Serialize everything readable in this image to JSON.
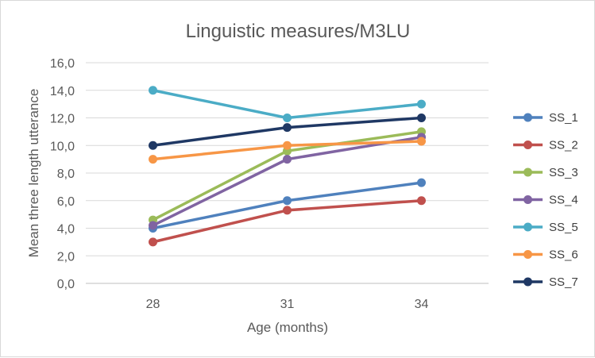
{
  "chart_data": {
    "type": "line",
    "title": "Linguistic measures/M3LU",
    "xlabel": "Age (months)",
    "ylabel": "Mean three length utterance",
    "categories": [
      "28",
      "31",
      "34"
    ],
    "ylim": [
      0,
      16
    ],
    "yticks": [
      "0,0",
      "2,0",
      "4,0",
      "6,0",
      "8,0",
      "10,0",
      "12,0",
      "14,0",
      "16,0"
    ],
    "grid": true,
    "legend_position": "right",
    "series": [
      {
        "name": "SS_1",
        "color": "#4f81bd",
        "values": [
          4.0,
          6.0,
          7.3
        ]
      },
      {
        "name": "SS_2",
        "color": "#c0504d",
        "values": [
          3.0,
          5.3,
          6.0
        ]
      },
      {
        "name": "SS_3",
        "color": "#9bbb59",
        "values": [
          4.6,
          9.6,
          11.0
        ]
      },
      {
        "name": "SS_4",
        "color": "#8064a2",
        "values": [
          4.2,
          9.0,
          10.6
        ]
      },
      {
        "name": "SS_5",
        "color": "#4bacc6",
        "values": [
          14.0,
          12.0,
          13.0
        ]
      },
      {
        "name": "SS_6",
        "color": "#f79646",
        "values": [
          9.0,
          10.0,
          10.3
        ]
      },
      {
        "name": "SS_7",
        "color": "#1f3864",
        "values": [
          10.0,
          11.3,
          12.0
        ]
      }
    ]
  }
}
